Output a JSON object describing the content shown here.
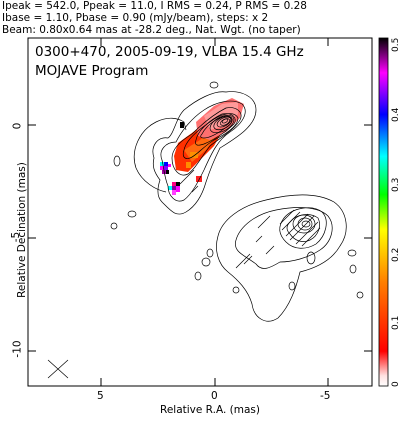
{
  "header": {
    "line1": "Ipeak = 542.0, Ppeak = 11.0, I RMS = 0.24, P RMS = 0.28",
    "line2": "Ibase = 1.10, Pbase = 0.90 (mJy/beam), steps: x 2",
    "line3": "Beam: 0.80x0.64 mas at -28.2 deg., Nat. Wgt. (no taper)"
  },
  "plot": {
    "title": "0300+470, 2005-09-19, VLBA 15.4 GHz",
    "subtitle": "MOJAVE Program",
    "xlabel": "Relative R.A. (mas)",
    "ylabel": "Relative Decination (mas)",
    "xticks": [
      "5",
      "0",
      "-5"
    ],
    "yticks": [
      "0",
      "-5",
      "-10"
    ],
    "colorbar_ticks": [
      "0",
      "0.1",
      "0.2",
      "0.3",
      "0.4",
      "0.5"
    ],
    "colorbar_colors": [
      "#ffffff",
      "#ff0000",
      "#ff8000",
      "#ffff00",
      "#00ff00",
      "#00ffff",
      "#0000ff",
      "#ff00ff",
      "#000000"
    ]
  }
}
